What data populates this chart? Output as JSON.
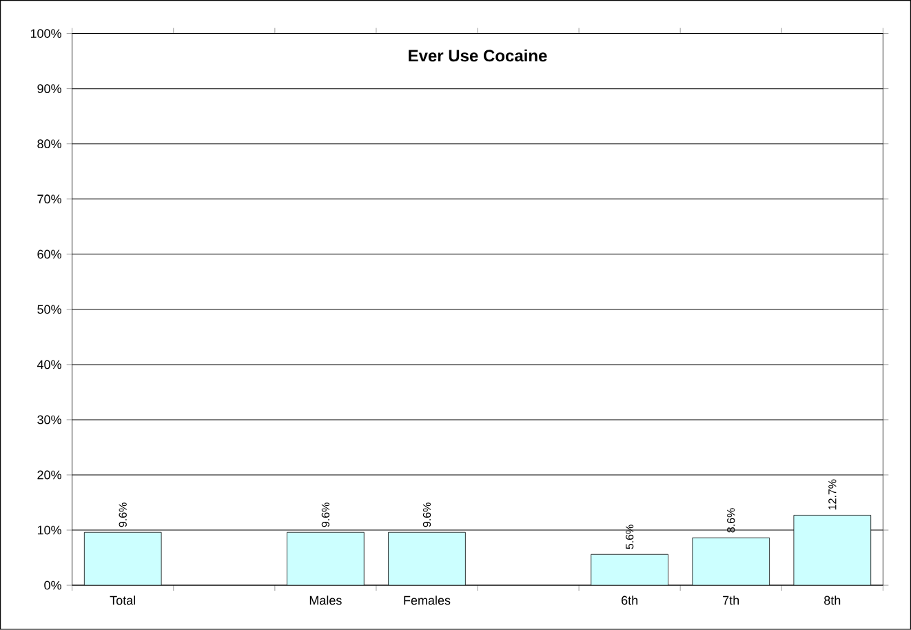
{
  "chart_data": {
    "type": "bar",
    "title": "Ever Use Cocaine",
    "categories": [
      "Total",
      null,
      "Males",
      "Females",
      null,
      "6th",
      "7th",
      "8th"
    ],
    "values": [
      9.6,
      null,
      9.6,
      9.6,
      null,
      5.6,
      8.6,
      12.7
    ],
    "value_labels": [
      "9.6%",
      null,
      "9.6%",
      "9.6%",
      null,
      "5.6%",
      "8.6%",
      "12.7%"
    ],
    "color": "#ccffff",
    "ylim": [
      0,
      100
    ],
    "yticks": [
      {
        "value": 0,
        "label": "0%"
      },
      {
        "value": 10,
        "label": "10%"
      },
      {
        "value": 20,
        "label": "20%"
      },
      {
        "value": 30,
        "label": "30%"
      },
      {
        "value": 40,
        "label": "40%"
      },
      {
        "value": 50,
        "label": "50%"
      },
      {
        "value": 60,
        "label": "60%"
      },
      {
        "value": 70,
        "label": "70%"
      },
      {
        "value": 80,
        "label": "80%"
      },
      {
        "value": 90,
        "label": "90%"
      },
      {
        "value": 100,
        "label": "100%"
      }
    ],
    "grid": "y"
  }
}
